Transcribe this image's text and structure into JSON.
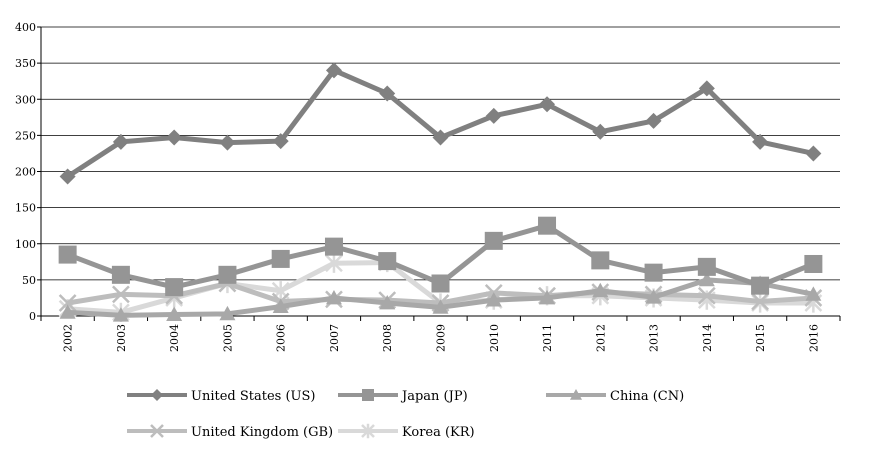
{
  "chart_data": {
    "type": "line",
    "title": "",
    "xlabel": "",
    "ylabel": "",
    "x": [
      "2002",
      "2003",
      "2004",
      "2005",
      "2006",
      "2007",
      "2008",
      "2009",
      "2010",
      "2011",
      "2012",
      "2013",
      "2014",
      "2015",
      "2016"
    ],
    "ylim": [
      0,
      400
    ],
    "yticks": [
      "0",
      "50",
      "100",
      "150",
      "200",
      "250",
      "300",
      "350",
      "400"
    ],
    "grid": "horizontal",
    "legend": "bottom",
    "series": [
      {
        "name": "United States (US)",
        "marker": "diamond",
        "color": "#808080",
        "values": [
          193,
          241,
          247,
          240,
          242,
          340,
          308,
          247,
          277,
          293,
          255,
          270,
          315,
          241,
          225
        ]
      },
      {
        "name": "Japan (JP)",
        "marker": "square",
        "color": "#959595",
        "values": [
          85,
          57,
          40,
          57,
          79,
          96,
          76,
          45,
          104,
          125,
          77,
          60,
          68,
          42,
          72
        ]
      },
      {
        "name": "China (CN)",
        "marker": "triangle",
        "color": "#a8a8a8",
        "values": [
          5,
          1,
          2,
          3,
          13,
          25,
          18,
          12,
          22,
          25,
          35,
          26,
          50,
          45,
          30
        ]
      },
      {
        "name": "United Kingdom (GB)",
        "marker": "x",
        "color": "#bdbdbd",
        "values": [
          18,
          30,
          28,
          45,
          20,
          23,
          22,
          18,
          32,
          28,
          33,
          30,
          28,
          20,
          25
        ]
      },
      {
        "name": "Korea (KR)",
        "marker": "star",
        "color": "#d9d9d9",
        "values": [
          10,
          5,
          25,
          45,
          35,
          73,
          74,
          18,
          22,
          28,
          28,
          25,
          22,
          18,
          18
        ]
      }
    ]
  }
}
